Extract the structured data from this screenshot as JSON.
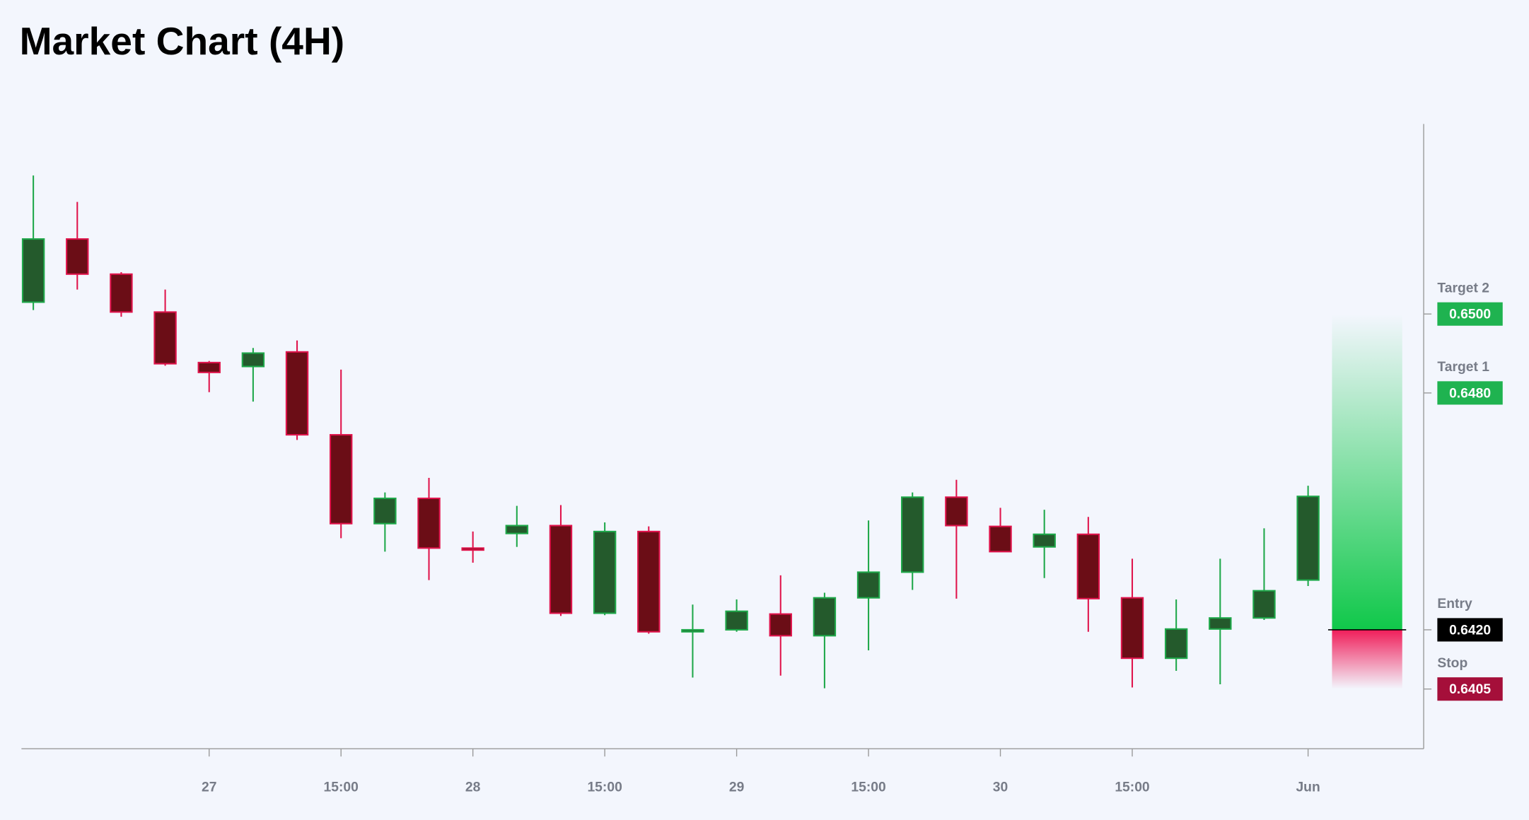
{
  "chart_data": {
    "type": "candlestick",
    "title": "Market Chart (4H)",
    "open": [
      0.6503,
      0.6519,
      0.65101,
      0.65005,
      0.64877,
      0.64867,
      0.64904,
      0.64694,
      0.64469,
      0.64533,
      0.64407,
      0.64444,
      0.64464,
      0.64242,
      0.64449,
      0.64195,
      0.642,
      0.6424,
      0.64185,
      0.64281,
      0.64346,
      0.64536,
      0.64462,
      0.6441,
      0.64442,
      0.64281,
      0.64128,
      0.64202,
      0.6423,
      0.64326
    ],
    "high": [
      0.65351,
      0.65284,
      0.65106,
      0.65062,
      0.64881,
      0.64914,
      0.64933,
      0.64859,
      0.64548,
      0.64585,
      0.64449,
      0.64514,
      0.64516,
      0.64472,
      0.64462,
      0.64264,
      0.64277,
      0.64338,
      0.64294,
      0.64477,
      0.64548,
      0.6458,
      0.64509,
      0.64504,
      0.64486,
      0.6438,
      0.64277,
      0.6438,
      0.64457,
      0.64565
    ],
    "low": [
      0.6501,
      0.65062,
      0.64993,
      0.64869,
      0.64802,
      0.64778,
      0.64681,
      0.64432,
      0.64398,
      0.64326,
      0.6437,
      0.6441,
      0.64235,
      0.64237,
      0.6419,
      0.64079,
      0.64195,
      0.64084,
      0.64052,
      0.64148,
      0.64301,
      0.64279,
      0.64398,
      0.64331,
      0.64195,
      0.64054,
      0.64096,
      0.64062,
      0.64225,
      0.64311
    ],
    "close": [
      0.6519,
      0.65101,
      0.65005,
      0.64874,
      0.64852,
      0.64901,
      0.64694,
      0.64469,
      0.64533,
      0.64407,
      0.64402,
      0.64464,
      0.64242,
      0.64449,
      0.64195,
      0.642,
      0.64247,
      0.64185,
      0.64281,
      0.64346,
      0.64536,
      0.64464,
      0.64398,
      0.64442,
      0.64279,
      0.64128,
      0.64202,
      0.6423,
      0.64299,
      0.64538
    ],
    "up_color": "#1fa84a",
    "up_fill": "#245a2c",
    "down_color": "#e0144c",
    "down_fill": "#6b0d16",
    "xlim": [
      -0.27,
      31.63
    ],
    "xticks": [
      {
        "value": 4,
        "label": "27"
      },
      {
        "value": 7,
        "label": "15:00"
      },
      {
        "value": 10,
        "label": "28"
      },
      {
        "value": 13,
        "label": "15:00"
      },
      {
        "value": 16,
        "label": "29"
      },
      {
        "value": 19,
        "label": "15:00"
      },
      {
        "value": 22,
        "label": "30"
      },
      {
        "value": 25,
        "label": "15:00"
      },
      {
        "value": 29,
        "label": "Jun"
      }
    ],
    "ylim": [
      0.638988,
      0.654815
    ],
    "levels": [
      {
        "name": "Target 2",
        "value": 0.65,
        "label": "0.6500",
        "color": "#1fb350"
      },
      {
        "name": "Target 1",
        "value": 0.648,
        "label": "0.6480",
        "color": "#1fb350"
      },
      {
        "name": "Entry",
        "value": 0.642,
        "label": "0.6420",
        "color": "#000000"
      },
      {
        "name": "Stop",
        "value": 0.6405,
        "label": "0.6405",
        "color": "#a50f3a"
      }
    ]
  }
}
